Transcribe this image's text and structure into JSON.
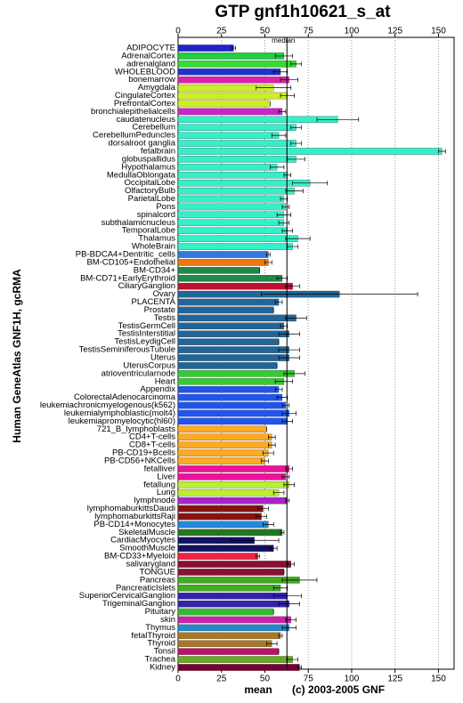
{
  "chart_data": {
    "type": "bar",
    "orientation": "horizontal",
    "title": "GTP gnf1h10621_s_at",
    "y_label": "Human GeneAtlas GNF1H, gcRMA",
    "x_label": "mean",
    "annotation": "(c) 2003-2005 GNF",
    "median": {
      "label": "median",
      "value": 62.7
    },
    "grid": true,
    "xlim": [
      0,
      159
    ],
    "xticks": [
      0,
      25,
      50,
      75,
      100,
      125,
      150
    ],
    "categories": [
      "ADIPOCYTE",
      "AdrenalCortex",
      "adrenalgland",
      "WHOLEBLOOD",
      "bonemarrow",
      "Amygdala",
      "CingulateCortex",
      "PrefrontalCortex",
      "bronchialepithelialcells",
      "caudatenucleus",
      "Cerebellum",
      "CerebellumPeduncles",
      "dorsalroot ganglia",
      "fetalbrain",
      "globuspallidus",
      "Hypothalamus",
      "MedullaOblongata",
      "OccipitalLobe",
      "OlfactoryBulb",
      "ParietalLobe",
      "Pons",
      "spinalcord",
      "subthalamicnucleus",
      "TemporalLobe",
      "Thalamus",
      "WholeBrain",
      "PB-BDCA4+Dentritic_cells",
      "BM-CD105+Endothelial",
      "BM-CD34+",
      "BM-CD71+EarlyErythroid",
      "CiliaryGanglion",
      "Ovary",
      "PLACENTA",
      "Prostate",
      "Testis",
      "TestisGermCell",
      "TestisInterstitial",
      "TestisLeydigCell",
      "TestisSeminiferousTubule",
      "Uterus",
      "UterusCorpus",
      "atrioventricularnode",
      "Heart",
      "Appendix",
      "ColorectalAdenocarcinoma",
      "leukemiachronicmyelogenous(k562)",
      "leukemialymphoblastic(molt4)",
      "leukemiapromyelocytic(hl60)",
      "721_B_lymphoblasts",
      "CD4+T-cells",
      "CD8+T-cells",
      "PB-CD19+Bcells",
      "PB-CD56+NKCells",
      "fetalliver",
      "Liver",
      "fetallung",
      "Lung",
      "lymphnode",
      "lymphomaburkittsDaudi",
      "lymphomaburkittsRaji",
      "PB-CD14+Monocytes",
      "SkeletalMuscle",
      "CardiacMyocytes",
      "SmoothMuscle",
      "BM-CD33+Myeloid",
      "salivarygland",
      "TONGUE",
      "Pancreas",
      "PancreaticIslets",
      "SuperiorCervicalGanglion",
      "TrigeminalGanglion",
      "Pituitary",
      "skin",
      "Thymus",
      "fetalThyroid",
      "Thyroid",
      "Tonsil",
      "Trachea",
      "Kidney"
    ],
    "values": [
      32,
      61,
      68,
      59,
      64,
      55,
      63,
      53,
      60,
      92,
      68,
      58,
      68,
      152,
      68,
      57,
      63,
      76,
      67,
      61,
      62,
      61,
      61,
      63,
      69,
      66,
      52,
      52,
      47,
      60,
      66,
      93,
      58,
      55,
      68,
      61,
      64,
      58,
      64,
      64,
      57,
      67,
      61,
      58,
      60,
      62,
      64,
      63,
      51,
      54,
      54,
      52,
      50,
      64,
      62,
      64,
      58,
      63,
      49,
      48,
      52,
      60,
      44,
      55,
      46,
      65,
      61,
      70,
      59,
      63,
      64,
      55,
      65,
      64,
      59,
      54,
      58,
      66,
      70
    ],
    "errors": [
      1,
      5,
      3,
      4,
      5,
      10,
      4,
      0,
      2,
      12,
      3,
      4,
      3,
      2,
      5,
      4,
      2,
      10,
      5,
      2,
      2,
      4,
      3,
      3,
      7,
      3,
      1,
      2,
      0,
      3,
      4,
      45,
      2,
      0,
      6,
      2,
      6,
      0,
      6,
      6,
      0,
      6,
      5,
      2,
      3,
      2,
      4,
      3,
      0,
      2,
      2,
      3,
      2,
      2,
      2,
      3,
      3,
      1,
      3,
      3,
      3,
      1,
      14,
      2,
      1,
      2,
      0,
      10,
      4,
      8,
      6,
      0,
      3,
      4,
      1,
      3,
      0,
      3,
      1
    ],
    "colors": [
      "#2222cc",
      "#22cc44",
      "#33dd33",
      "#2233cc",
      "#dd22aa",
      "#ccee22",
      "#ccee22",
      "#ccee22",
      "#cc22cc",
      "#33f0c8",
      "#33f0c8",
      "#33f0c8",
      "#33f0c8",
      "#33f0c8",
      "#33f0c8",
      "#33f0c8",
      "#33f0c8",
      "#33f0c8",
      "#33f0c8",
      "#33f0c8",
      "#33f0c8",
      "#33f0c8",
      "#33f0c8",
      "#33f0c8",
      "#33f0c8",
      "#33f0c8",
      "#3377dd",
      "#ee7711",
      "#228844",
      "#228844",
      "#bb1133",
      "#226699",
      "#226699",
      "#226699",
      "#226699",
      "#226699",
      "#226699",
      "#226699",
      "#226699",
      "#226699",
      "#226699",
      "#33cc33",
      "#33cc33",
      "#2255ee",
      "#2255ee",
      "#2255ee",
      "#2255ee",
      "#2255ee",
      "#ffaa22",
      "#ffaa22",
      "#ffaa22",
      "#ffaa22",
      "#ffaa22",
      "#ee1199",
      "#ee1199",
      "#bbee33",
      "#bbee33",
      "#aa22cc",
      "#881111",
      "#881111",
      "#2288dd",
      "#227722",
      "#111166",
      "#111166",
      "#ee2244",
      "#881133",
      "#881133",
      "#44aa22",
      "#44aa22",
      "#3322aa",
      "#3322aa",
      "#33bb33",
      "#cc22aa",
      "#2288cc",
      "#aa7722",
      "#aa7722",
      "#bb1166",
      "#66aa22",
      "#770033"
    ]
  }
}
